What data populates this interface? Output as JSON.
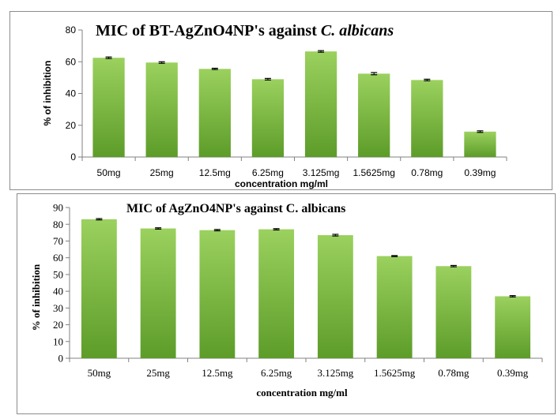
{
  "chart_data": [
    {
      "type": "bar",
      "title_main": "MIC of BT-AgZnO4NP's against",
      "title_italic": "C. albicans",
      "categories": [
        "50mg",
        "25mg",
        "12.5mg",
        "6.25mg",
        "3.125mg",
        "1.5625mg",
        "0.78mg",
        "0.39mg"
      ],
      "values": [
        62.5,
        59.5,
        55.5,
        49,
        66.5,
        52.5,
        48.5,
        16
      ],
      "errors": [
        0.5,
        0.5,
        0.4,
        0.5,
        0.5,
        0.7,
        0.5,
        0.5
      ],
      "xlabel": "concentration mg/ml",
      "ylabel": "% of inhibition",
      "ylim": [
        0,
        80
      ],
      "yticks": [
        0,
        20,
        40,
        60,
        80
      ],
      "colors": {
        "bar_top": "#9bd15e",
        "bar_bottom": "#5d9c29",
        "axis": "#808080",
        "error": "#000000"
      }
    },
    {
      "type": "bar",
      "title": "MIC of AgZnO4NP's against C. albicans",
      "categories": [
        "50mg",
        "25mg",
        "12.5mg",
        "6.25mg",
        "3.125mg",
        "1.5625mg",
        "0.78mg",
        "0.39mg"
      ],
      "values": [
        83,
        77.5,
        76.5,
        77,
        73.5,
        61,
        55,
        37
      ],
      "errors": [
        0.4,
        0.4,
        0.4,
        0.4,
        0.5,
        0.3,
        0.4,
        0.4
      ],
      "xlabel": "concentration mg/ml",
      "ylabel": "% of inhibition",
      "ylim": [
        0,
        90
      ],
      "yticks": [
        0,
        10,
        20,
        30,
        40,
        50,
        60,
        70,
        80,
        90
      ],
      "colors": {
        "bar_top": "#9bd15e",
        "bar_bottom": "#5d9c29",
        "axis": "#808080",
        "error": "#000000"
      }
    }
  ]
}
